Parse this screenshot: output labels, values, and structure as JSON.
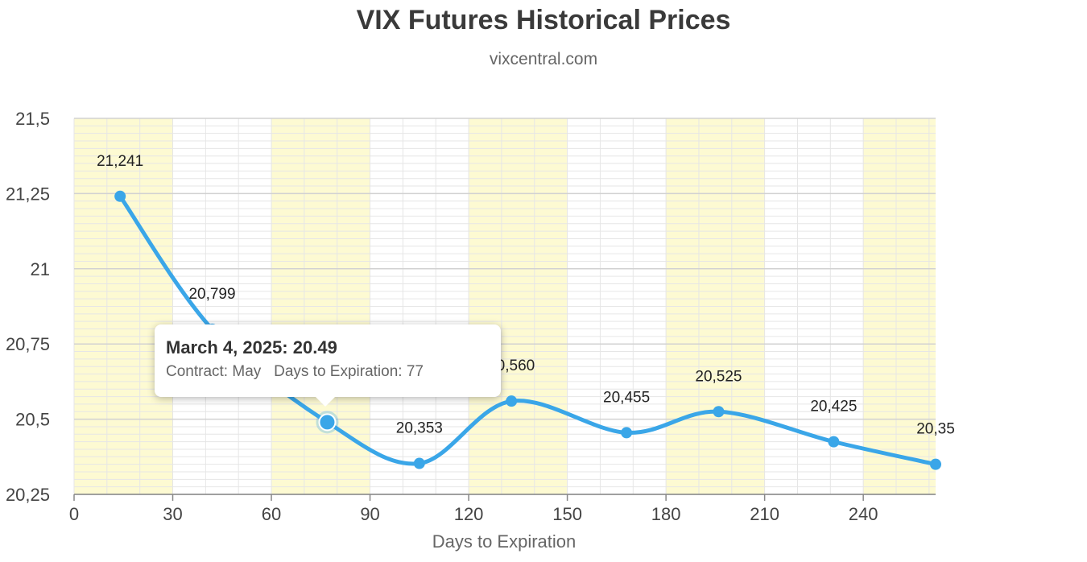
{
  "chart_data": {
    "type": "line",
    "title": "VIX Futures Historical Prices",
    "subtitle": "vixcentral.com",
    "xlabel": "Days to Expiration",
    "ylabel": "",
    "xlim": [
      0,
      262
    ],
    "ylim": [
      20.25,
      21.5
    ],
    "xticks": [
      0,
      30,
      60,
      90,
      120,
      150,
      180,
      210,
      240
    ],
    "xtick_labels": [
      "0",
      "30",
      "60",
      "90",
      "120",
      "150",
      "180",
      "210",
      "240"
    ],
    "yticks": [
      20.25,
      20.5,
      20.75,
      21,
      21.25,
      21.5
    ],
    "ytick_labels": [
      "20,25",
      "20,5",
      "20,75",
      "21",
      "21,25",
      "21,5"
    ],
    "grid": true,
    "line_color": "#3aa6e8",
    "band_color": "#fdfad2",
    "series": [
      {
        "x": [
          14,
          42,
          77,
          105,
          133,
          168,
          196,
          231,
          262
        ],
        "y": [
          21.241,
          20.799,
          20.49,
          20.353,
          20.56,
          20.455,
          20.525,
          20.425,
          20.35
        ],
        "labels": [
          "21,241",
          "20,799",
          "",
          "20,353",
          "20,560",
          "20,455",
          "20,525",
          "20,425",
          "20,35"
        ]
      }
    ]
  },
  "tooltip": {
    "title": "March 4, 2025: 20.49",
    "contract_text": "Contract: May",
    "days_text": "Days to Expiration: 77"
  }
}
